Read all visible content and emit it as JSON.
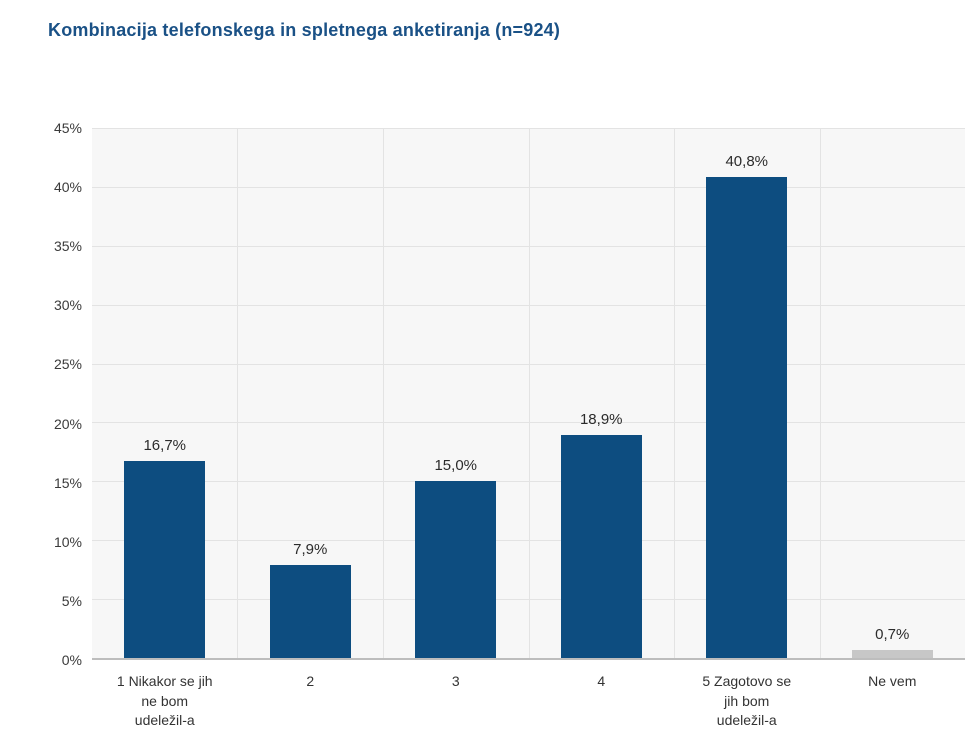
{
  "title": "Kombinacija telefonskega in spletnega anketiranja (n=924)",
  "chart_data": {
    "type": "bar",
    "title": "Kombinacija telefonskega in spletnega anketiranja (n=924)",
    "categories": [
      "1 Nikakor se jih\nne bom\nudeležil-a",
      "2",
      "3",
      "4",
      "5 Zagotovo se\njih bom\nudeležil-a",
      "Ne vem"
    ],
    "values": [
      16.7,
      7.9,
      15.0,
      18.9,
      40.8,
      0.7
    ],
    "value_labels": [
      "16,7%",
      "7,9%",
      "15,0%",
      "18,9%",
      "40,8%",
      "0,7%"
    ],
    "bar_colors": [
      "#0d4d80",
      "#0d4d80",
      "#0d4d80",
      "#0d4d80",
      "#0d4d80",
      "#c7c7c7"
    ],
    "xlabel": "",
    "ylabel": "",
    "ylim": [
      0,
      45
    ],
    "ytick_step": 5,
    "yticks": [
      "45%",
      "40%",
      "35%",
      "30%",
      "25%",
      "20%",
      "15%",
      "10%",
      "5%",
      "0%"
    ],
    "grid": true,
    "legend": "none",
    "colors": {
      "bar_primary": "#0d4d80",
      "bar_neutral": "#c7c7c7",
      "title_text": "#1a5186",
      "plot_background": "#f7f7f7",
      "gridline": "#e3e3e3"
    }
  }
}
